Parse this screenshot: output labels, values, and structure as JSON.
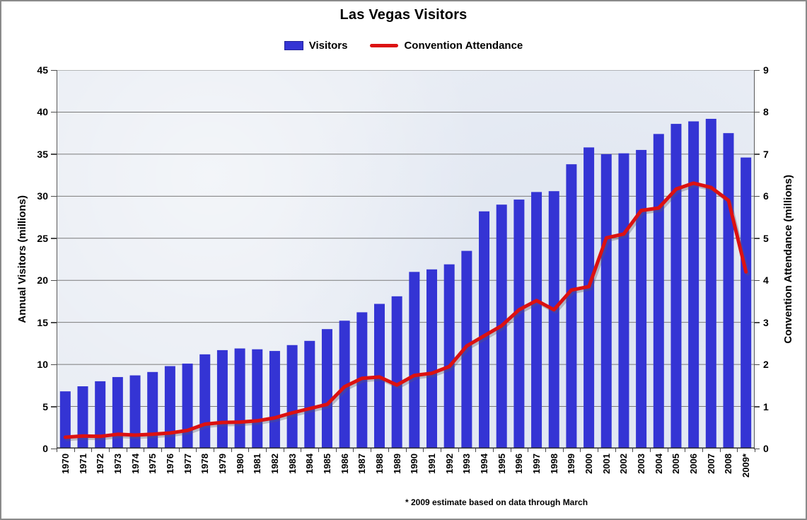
{
  "page": {
    "title": "Las Vegas Visitors",
    "footnote": "* 2009 estimate based on data through March"
  },
  "legend": {
    "items": [
      {
        "label": "Visitors",
        "swatch": "bar",
        "color": "#3434d4"
      },
      {
        "label": "Convention Attendance",
        "swatch": "line",
        "color": "#dc1111"
      }
    ]
  },
  "chart_data": {
    "type": "bar+line combo",
    "title": "Las Vegas Visitors",
    "categories": [
      "1970",
      "1971",
      "1972",
      "1973",
      "1974",
      "1975",
      "1976",
      "1977",
      "1978",
      "1979",
      "1980",
      "1981",
      "1982",
      "1983",
      "1984",
      "1985",
      "1986",
      "1987",
      "1988",
      "1989",
      "1990",
      "1991",
      "1992",
      "1993",
      "1994",
      "1995",
      "1996",
      "1997",
      "1998",
      "1999",
      "2000",
      "2001",
      "2002",
      "2003",
      "2004",
      "2005",
      "2006",
      "2007",
      "2008",
      "2009*"
    ],
    "series": [
      {
        "name": "Visitors",
        "type": "bar",
        "axis": "left",
        "color": "#3434d4",
        "values": [
          6.8,
          7.4,
          8.0,
          8.5,
          8.7,
          9.1,
          9.8,
          10.1,
          11.2,
          11.7,
          11.9,
          11.8,
          11.6,
          12.3,
          12.8,
          14.2,
          15.2,
          16.2,
          17.2,
          18.1,
          21.0,
          21.3,
          21.9,
          23.5,
          28.2,
          29.0,
          29.6,
          30.5,
          30.6,
          33.8,
          35.8,
          35.0,
          35.1,
          35.5,
          37.4,
          38.6,
          38.9,
          39.2,
          37.5,
          34.6
        ]
      },
      {
        "name": "Convention Attendance",
        "type": "line",
        "axis": "right",
        "color": "#dc1111",
        "values": [
          0.27,
          0.3,
          0.29,
          0.34,
          0.32,
          0.34,
          0.37,
          0.43,
          0.58,
          0.62,
          0.63,
          0.66,
          0.73,
          0.85,
          0.95,
          1.05,
          1.47,
          1.67,
          1.7,
          1.51,
          1.74,
          1.79,
          1.95,
          2.44,
          2.68,
          2.92,
          3.3,
          3.52,
          3.3,
          3.77,
          3.85,
          5.01,
          5.1,
          5.66,
          5.72,
          6.17,
          6.31,
          6.21,
          5.9,
          4.2
        ]
      }
    ],
    "left_axis": {
      "label": "Annual Visitors (millions)",
      "min": 0,
      "max": 45,
      "tick_step": 5
    },
    "right_axis": {
      "label": "Convention Attendance (millions)",
      "min": 0,
      "max": 9,
      "tick_step": 1
    },
    "grid": true,
    "legend_position": "top",
    "plot_background": "#e9edf4",
    "gridline_color": "#7b7b7b"
  }
}
